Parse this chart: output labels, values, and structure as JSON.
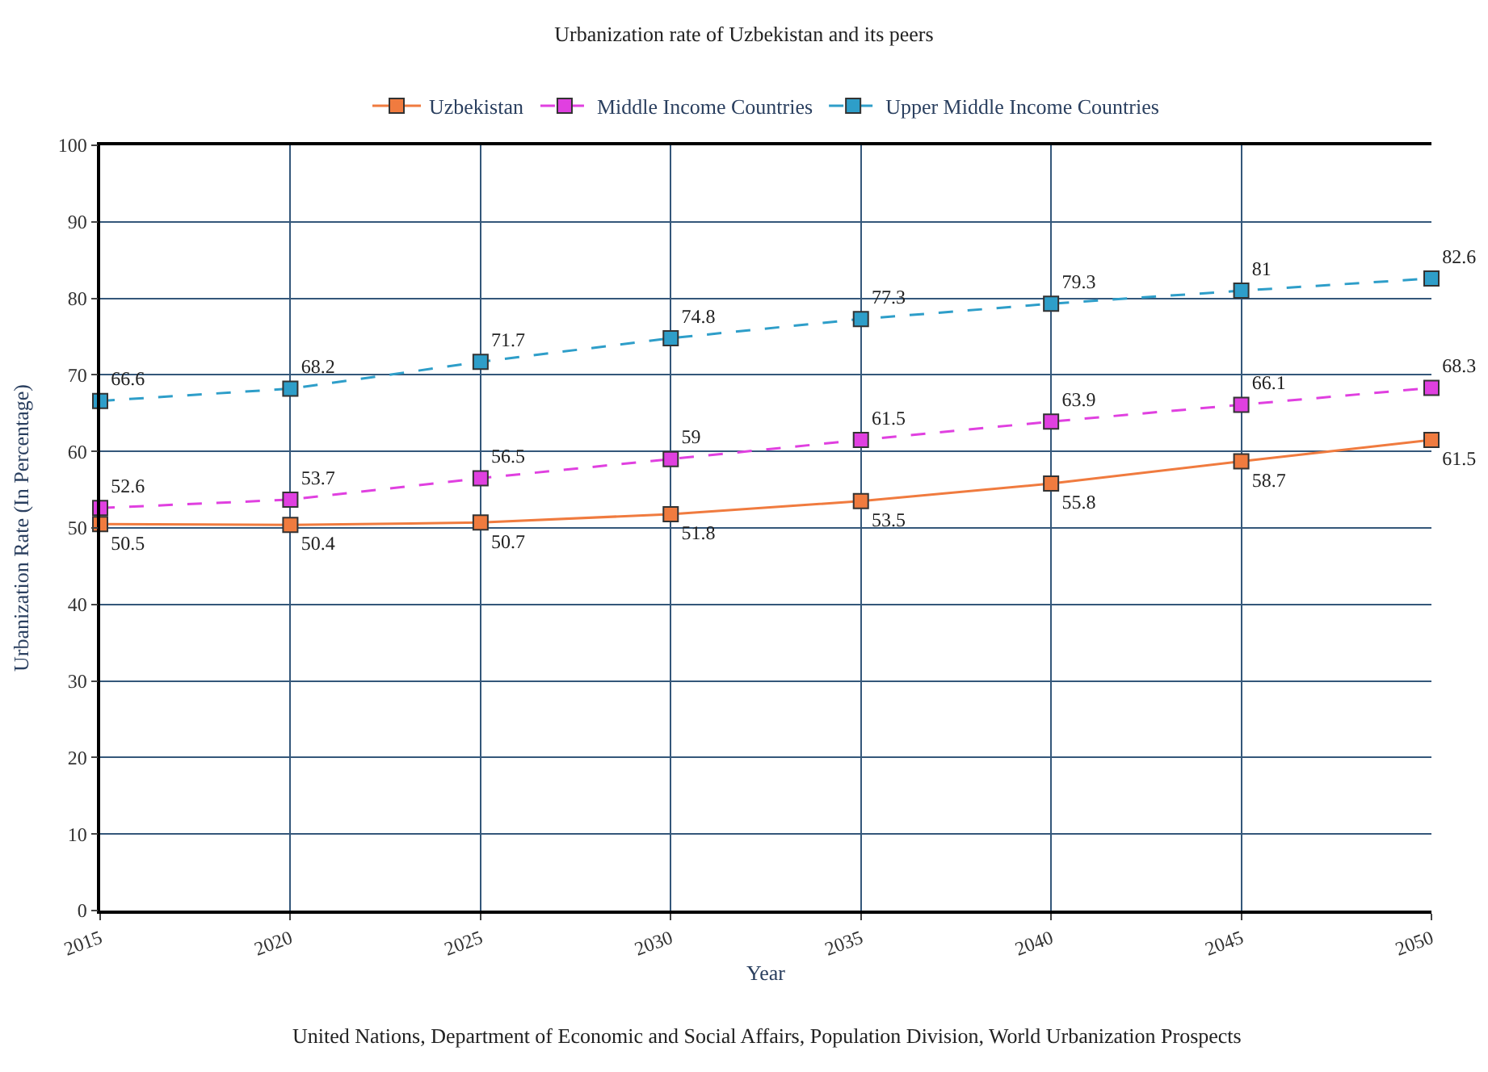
{
  "chart_data": {
    "type": "line",
    "title": "Urbanization rate of Uzbekistan and its peers",
    "xlabel": "Year",
    "ylabel": "Urbanization Rate (In Percentage)",
    "annotations": [
      "United Nations, Department of Economic and Social Affairs, Population Division, World Urbanization Prospects"
    ],
    "x": [
      2015,
      2020,
      2025,
      2030,
      2035,
      2040,
      2045,
      2050
    ],
    "series": [
      {
        "name": "Uzbekistan",
        "color": "#f07b3f",
        "line_style": "solid",
        "values": [
          50.5,
          50.4,
          50.7,
          51.8,
          53.5,
          55.8,
          58.7,
          61.5
        ]
      },
      {
        "name": "Middle Income Countries",
        "color": "#e040e0",
        "line_style": "dashed",
        "values": [
          52.6,
          53.7,
          56.5,
          59,
          61.5,
          63.9,
          66.1,
          68.3
        ]
      },
      {
        "name": "Upper Middle Income Countries",
        "color": "#2e9ec9",
        "line_style": "dashed",
        "values": [
          66.6,
          68.2,
          71.7,
          74.8,
          77.3,
          79.3,
          81,
          82.6
        ]
      }
    ],
    "xlim": [
      2015,
      2050
    ],
    "xticks": [
      2015,
      2020,
      2025,
      2030,
      2035,
      2040,
      2045,
      2050
    ],
    "ylim": [
      0,
      100
    ],
    "yticks": [
      0,
      10,
      20,
      30,
      40,
      50,
      60,
      70,
      80,
      90,
      100
    ],
    "grid": true,
    "legend": "top",
    "marker": "square",
    "data_labels": true
  }
}
